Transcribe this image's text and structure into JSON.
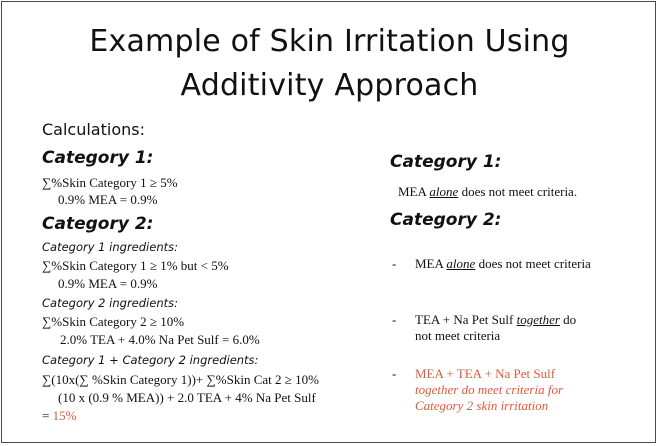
{
  "title": {
    "line1": "Example of Skin Irritation Using",
    "line2": "Additivity Approach"
  },
  "left": {
    "calculations": "Calculations:",
    "cat1_heading": "Category 1:",
    "cat1_line1": "∑%Skin Category 1 ≥ 5%",
    "cat1_line2": "0.9% MEA = 0.9%",
    "cat2_heading": "Category 2:",
    "cat1_ingredients_label": "Category 1 ingredients:",
    "cat1_ing_line1": "∑%Skin Category 1 ≥ 1% but < 5%",
    "cat1_ing_line2": "0.9% MEA = 0.9%",
    "cat2_ingredients_label": "Category 2 ingredients:",
    "cat2_ing_line1": "∑%Skin Category 2 ≥ 10%",
    "cat2_ing_line2": "2.0%  TEA + 4.0% Na Pet Sulf = 6.0%",
    "cat12_ingredients_label": "Category 1 + Category 2 ingredients:",
    "cat12_line1": "∑(10x(∑ %Skin Category 1))+ ∑%Skin Cat 2 ≥ 10%",
    "cat12_line2": "(10 x (0.9 % MEA)) + 2.0 TEA + 4% Na Pet Sulf",
    "cat12_line3_prefix": "=",
    "cat12_line3_result": "15%"
  },
  "right": {
    "cat1_heading": "Category 1:",
    "cat1_text_pre": "MEA ",
    "cat1_text_em": "alone",
    "cat1_text_post": " does not meet criteria.",
    "cat2_heading": "Category 2:",
    "dash": "-",
    "item1_pre": "MEA ",
    "item1_em": "alone",
    "item1_post": " does not meet criteria",
    "item2_pre": "TEA + Na Pet Sulf ",
    "item2_em": "together",
    "item2_post": " do",
    "item2_line2": "not meet criteria",
    "item3_line1": "MEA + TEA + Na Pet Sulf",
    "item3_line2": "together do meet criteria for",
    "item3_line3": "Category 2 skin irritation"
  },
  "colors": {
    "highlight": "#e3573b",
    "border": "#4a4a4a"
  }
}
